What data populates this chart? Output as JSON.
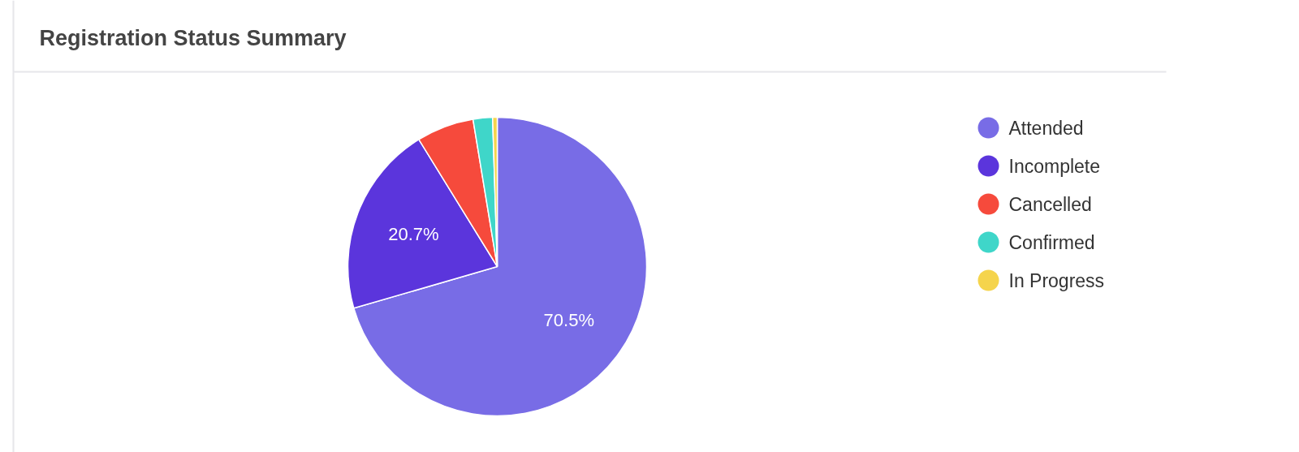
{
  "chart_data": {
    "type": "pie",
    "title": "Registration Status Summary",
    "categories": [
      "Attended",
      "Incomplete",
      "Cancelled",
      "Confirmed",
      "In Progress"
    ],
    "values": [
      70.5,
      20.7,
      6.2,
      2.1,
      0.5
    ],
    "colors": [
      "#786ce6",
      "#5b35dc",
      "#f64a3c",
      "#3fd6c9",
      "#f5d44c"
    ],
    "value_labels": [
      "70.5%",
      "20.7%",
      null,
      null,
      null
    ],
    "legend": "right"
  }
}
